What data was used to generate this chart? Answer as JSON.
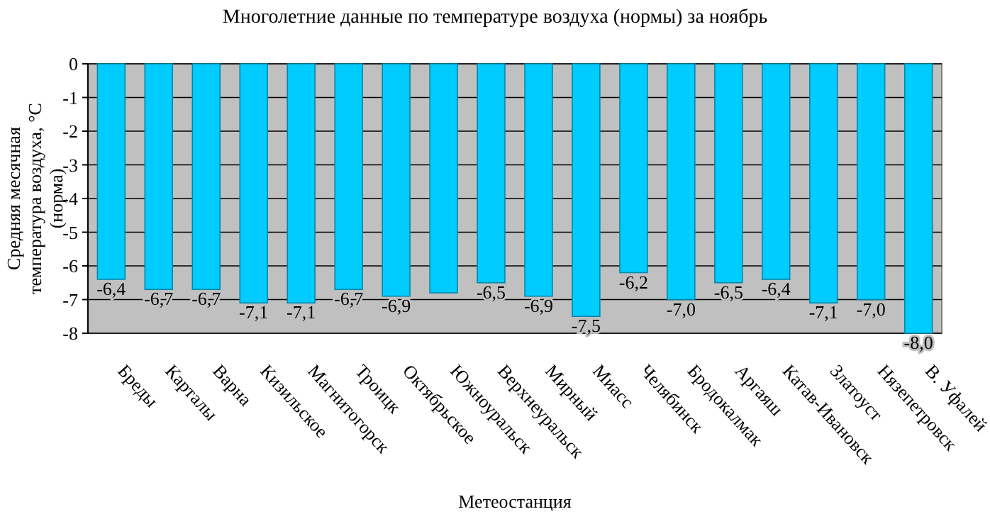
{
  "chart_data": {
    "type": "bar",
    "title": "Многолетние данные по температуре воздуха (нормы) за ноябрь",
    "xlabel": "Метеостанция",
    "ylabel": "Средняя месячная\nтемпература воздуха, °С\n(норма)",
    "categories": [
      "Бреды",
      "Карталы",
      "Варна",
      "Кизильское",
      "Магнитогорск",
      "Троицк",
      "Октябрьское",
      "Южноуральск",
      "Верхнеуральск",
      "Мирный",
      "Миасс",
      "Челябинск",
      "Бродокалмак",
      "Аргаяш",
      "Катав-Ивановск",
      "Златоуст",
      "Нязепетровск",
      "В. Уфалей"
    ],
    "values": [
      -6.4,
      -6.7,
      -6.7,
      -7.1,
      -7.1,
      -6.7,
      -6.9,
      -6.8,
      -6.5,
      -6.9,
      -7.5,
      -6.2,
      -7.0,
      -6.5,
      -6.4,
      -7.1,
      -7.0,
      -8.0
    ],
    "value_labels": [
      "-6,4",
      "-6,7",
      "-6,7",
      "-7,1",
      "-7,1",
      "-6,7",
      "-6,9",
      null,
      "-6,5",
      "-6,9",
      "-7,5",
      "-6,2",
      "-7,0",
      "-6,5",
      "-6,4",
      "-7,1",
      "-7,0",
      "-8,0"
    ],
    "color": "#00ccff",
    "ylim": [
      -8,
      0
    ],
    "yticks": [
      -8,
      -7,
      -6,
      -5,
      -4,
      -3,
      -2,
      -1,
      0
    ],
    "grid": "y"
  }
}
